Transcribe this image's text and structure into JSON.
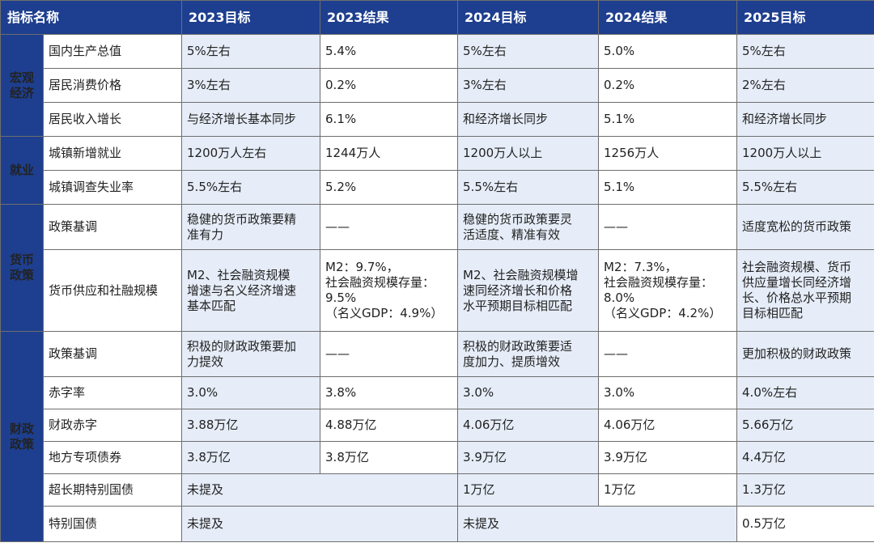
{
  "header": [
    "指标名称",
    "2023目标",
    "2023结果",
    "2024目标",
    "2024结果",
    "2025目标"
  ],
  "categories": {
    "macro": "宏观\n经济",
    "employment": "就业",
    "monetary": "货币\n政策",
    "fiscal": "财政\n政策"
  },
  "rows": [
    {
      "name": "国内生产总值",
      "t23": "5%左右",
      "r23": "5.4%",
      "t24": "5%左右",
      "r24": "5.0%",
      "t25": "5%左右"
    },
    {
      "name": "居民消费价格",
      "t23": "3%左右",
      "r23": "0.2%",
      "t24": "3%左右",
      "r24": "0.2%",
      "t25": "2%左右"
    },
    {
      "name": "居民收入增长",
      "t23": "与经济增长基本同步",
      "r23": "6.1%",
      "t24": "和经济增长同步",
      "r24": "5.1%",
      "t25": "和经济增长同步"
    },
    {
      "name": "城镇新增就业",
      "t23": "1200万人左右",
      "r23": "1244万人",
      "t24": "1200万人以上",
      "r24": "1256万人",
      "t25": "1200万人以上"
    },
    {
      "name": "城镇调查失业率",
      "t23": "5.5%左右",
      "r23": "5.2%",
      "t24": "5.5%左右",
      "r24": "5.1%",
      "t25": "5.5%左右"
    },
    {
      "name": "政策基调",
      "t23": "稳健的货币政策要精\n准有力",
      "r23": "——",
      "t24": "稳健的货币政策要灵\n活适度、精准有效",
      "r24": "——",
      "t25": "适度宽松的货币政策"
    },
    {
      "name": "货币供应和社融规模",
      "t23": "M2、社会融资规模\n增速与名义经济增速\n基本匹配",
      "r23": "M2：9.7%，\n社会融资规模存量：\n9.5%\n（名义GDP：4.9%）",
      "t24": "M2、社会融资规模增\n速同经济增长和价格\n水平预期目标相匹配",
      "r24": "M2：7.3%，\n社会融资规模存量：\n8.0%\n（名义GDP：4.2%）",
      "t25": "社会融资规模、货币\n供应量增长同经济增\n长、价格总水平预期\n目标相匹配"
    },
    {
      "name": "政策基调",
      "t23": "积极的财政政策要加\n力提效",
      "r23": "——",
      "t24": "积极的财政政策要适\n度加力、提质增效",
      "r24": "——",
      "t25": "更加积极的财政政策"
    },
    {
      "name": "赤字率",
      "t23": "3.0%",
      "r23": "3.8%",
      "t24": "3.0%",
      "r24": "3.0%",
      "t25": "4.0%左右"
    },
    {
      "name": "财政赤字",
      "t23": "3.88万亿",
      "r23": "4.88万亿",
      "t24": "4.06万亿",
      "r24": "4.06万亿",
      "t25": "5.66万亿"
    },
    {
      "name": "地方专项债券",
      "t23": "3.8万亿",
      "r23": "3.8万亿",
      "t24": "3.9万亿",
      "r24": "3.9万亿",
      "t25": "4.4万亿"
    },
    {
      "name": "超长期特别国债",
      "t23": "未提及",
      "t24": "1万亿",
      "r24": "1万亿",
      "t25": "1.3万亿"
    },
    {
      "name": "特别国债",
      "t23": "未提及",
      "t24": "未提及",
      "t25": "0.5万亿"
    }
  ]
}
